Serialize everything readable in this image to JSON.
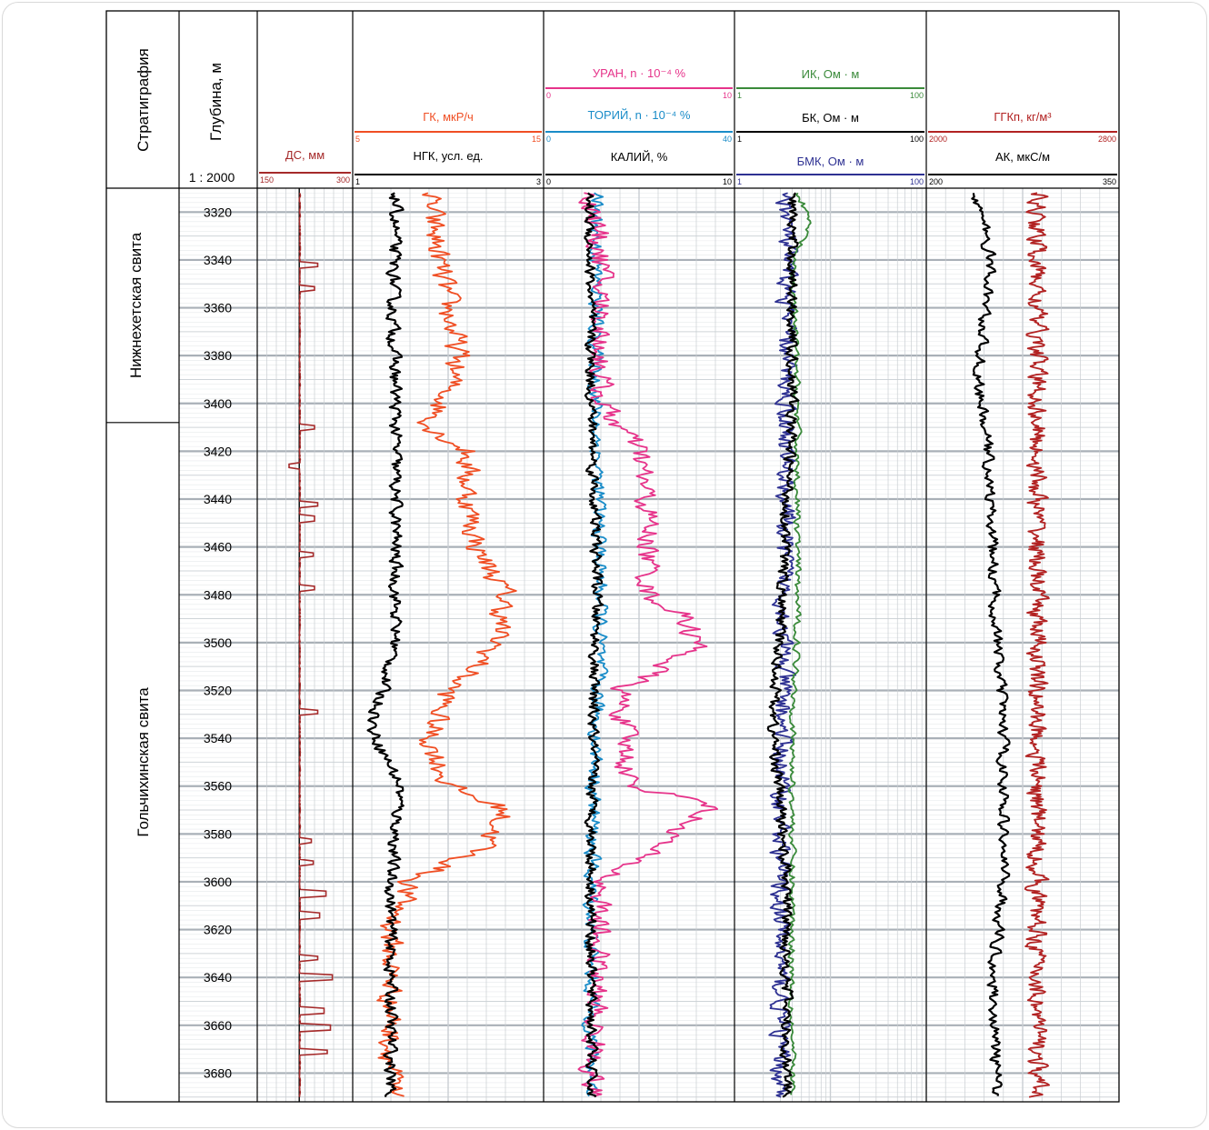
{
  "strat_header": "Стратиграфия",
  "depth_header": "Глубина, м",
  "scale": "1 : 2000",
  "formations": [
    "Нижнехетская свита",
    "Гольчихинская свита"
  ],
  "depth_ticks": [
    "3320",
    "3340",
    "3360",
    "3380",
    "3400",
    "3420",
    "3440",
    "3460",
    "3480",
    "3500",
    "3520",
    "3540",
    "3560",
    "3580",
    "3600",
    "3620",
    "3640",
    "3660",
    "3680"
  ],
  "track_headers": {
    "ds": {
      "label": "ДС, мм",
      "min": "150",
      "max": "300"
    },
    "gk": {
      "label": "ГК, мкР/ч",
      "min": "5",
      "max": "15"
    },
    "ngk": {
      "label": "НГК, усл. ед.",
      "min": "1",
      "max": "3"
    },
    "u": {
      "label": "УРАН, n · 10⁻⁴ %",
      "min": "0",
      "max": "10"
    },
    "th": {
      "label": "ТОРИЙ, n · 10⁻⁴ %",
      "min": "0",
      "max": "40"
    },
    "k": {
      "label": "КАЛИЙ, %",
      "min": "0",
      "max": "10"
    },
    "ik": {
      "label": "ИК, Ом · м",
      "min": "1",
      "max": "100"
    },
    "bk": {
      "label": "БК, Ом · м",
      "min": "1",
      "max": "100"
    },
    "bmk": {
      "label": "БМК, Ом · м",
      "min": "1",
      "max": "100"
    },
    "ggk": {
      "label": "ГГКп, кг/м³",
      "min": "2000",
      "max": "2800"
    },
    "ak": {
      "label": "АК, мкС/м",
      "min": "200",
      "max": "350"
    }
  },
  "colors": {
    "ds": "#a52a2a",
    "gk": "#f04e23",
    "ngk": "#000000",
    "u": "#e6338a",
    "th": "#1a8cc8",
    "k": "#000000",
    "ik": "#3a8a3a",
    "bk": "#000000",
    "bmk": "#2e3192",
    "ggk": "#b22222",
    "ak": "#000000",
    "grid": "#b8bec4"
  },
  "chart_data": {
    "type": "line",
    "title": "",
    "ylabel": "Глубина, м",
    "depth_range": [
      3310,
      3692
    ],
    "formation_boundary_depth": 3408,
    "series": [
      {
        "name": "ДС, мм",
        "unit_range": [
          150,
          300
        ],
        "base": 217,
        "spikes": [
          [
            3342,
            245
          ],
          [
            3352,
            240
          ],
          [
            3410,
            240
          ],
          [
            3426,
            200
          ],
          [
            3442,
            245
          ],
          [
            3448,
            240
          ],
          [
            3463,
            238
          ],
          [
            3477,
            240
          ],
          [
            3529,
            245
          ],
          [
            3583,
            235
          ],
          [
            3592,
            238
          ],
          [
            3605,
            258
          ],
          [
            3614,
            248
          ],
          [
            3632,
            245
          ],
          [
            3640,
            268
          ],
          [
            3654,
            255
          ],
          [
            3661,
            265
          ],
          [
            3671,
            260
          ]
        ]
      },
      {
        "name": "ГК, мкР/ч",
        "unit_range": [
          5,
          15
        ],
        "profile": [
          [
            3315,
            9
          ],
          [
            3340,
            9.5
          ],
          [
            3360,
            10
          ],
          [
            3380,
            10.5
          ],
          [
            3395,
            10
          ],
          [
            3410,
            9
          ],
          [
            3420,
            11
          ],
          [
            3440,
            11
          ],
          [
            3460,
            11.5
          ],
          [
            3480,
            13
          ],
          [
            3500,
            12.5
          ],
          [
            3510,
            11.5
          ],
          [
            3520,
            10
          ],
          [
            3540,
            9
          ],
          [
            3560,
            10
          ],
          [
            3570,
            13
          ],
          [
            3585,
            12
          ],
          [
            3600,
            8
          ],
          [
            3620,
            7
          ],
          [
            3640,
            7
          ],
          [
            3660,
            7
          ],
          [
            3690,
            7
          ]
        ]
      },
      {
        "name": "НГК, усл. ед.",
        "unit_range": [
          1,
          3
        ],
        "profile": [
          [
            3315,
            1.45
          ],
          [
            3360,
            1.42
          ],
          [
            3400,
            1.45
          ],
          [
            3500,
            1.45
          ],
          [
            3536,
            1.2
          ],
          [
            3560,
            1.5
          ],
          [
            3600,
            1.4
          ],
          [
            3690,
            1.4
          ]
        ]
      },
      {
        "name": "КАЛИЙ, %",
        "unit_range": [
          0,
          10
        ],
        "profile": [
          [
            3315,
            2.4
          ],
          [
            3400,
            2.5
          ],
          [
            3480,
            2.8
          ],
          [
            3520,
            2.6
          ],
          [
            3600,
            2.5
          ],
          [
            3690,
            2.5
          ]
        ]
      },
      {
        "name": "ТОРИЙ, n · 10⁻⁴ %",
        "unit_range": [
          0,
          40
        ],
        "profile": [
          [
            3315,
            11
          ],
          [
            3400,
            11
          ],
          [
            3480,
            12
          ],
          [
            3600,
            10
          ],
          [
            3690,
            10
          ]
        ]
      },
      {
        "name": "УРАН, n · 10⁻⁴ %",
        "unit_range": [
          0,
          10
        ],
        "profile": [
          [
            3315,
            2.5
          ],
          [
            3340,
            3
          ],
          [
            3400,
            3
          ],
          [
            3420,
            5
          ],
          [
            3450,
            5.5
          ],
          [
            3480,
            5.5
          ],
          [
            3490,
            7.5
          ],
          [
            3502,
            8
          ],
          [
            3520,
            4
          ],
          [
            3560,
            4.5
          ],
          [
            3567,
            9
          ],
          [
            3582,
            6.5
          ],
          [
            3600,
            3
          ],
          [
            3690,
            2.5
          ]
        ]
      },
      {
        "name": "ИК, Ом · м",
        "unit_range": [
          1,
          100
        ],
        "log": true,
        "profile": [
          [
            3315,
            5
          ],
          [
            3325,
            6
          ],
          [
            3340,
            4
          ],
          [
            3400,
            4.5
          ],
          [
            3500,
            4.5
          ],
          [
            3540,
            4
          ],
          [
            3600,
            4
          ],
          [
            3690,
            4
          ]
        ]
      },
      {
        "name": "БК, Ом · м",
        "unit_range": [
          1,
          100
        ],
        "log": true,
        "profile": [
          [
            3315,
            4
          ],
          [
            3400,
            4
          ],
          [
            3536,
            2.5
          ],
          [
            3600,
            3.5
          ],
          [
            3690,
            3.5
          ]
        ]
      },
      {
        "name": "БМК, Ом · м",
        "unit_range": [
          1,
          100
        ],
        "log": true,
        "profile": [
          [
            3315,
            3.5
          ],
          [
            3400,
            3.5
          ],
          [
            3600,
            3
          ],
          [
            3690,
            3
          ]
        ]
      },
      {
        "name": "ГГКп, кг/м³",
        "unit_range": [
          2000,
          2800
        ],
        "profile": [
          [
            3315,
            2460
          ],
          [
            3690,
            2460
          ]
        ]
      },
      {
        "name": "АК, мкС/м",
        "unit_range": [
          200,
          350
        ],
        "profile": [
          [
            3315,
            240
          ],
          [
            3340,
            250
          ],
          [
            3390,
            240
          ],
          [
            3420,
            248
          ],
          [
            3500,
            255
          ],
          [
            3536,
            260
          ],
          [
            3600,
            260
          ],
          [
            3640,
            252
          ],
          [
            3690,
            255
          ]
        ]
      }
    ]
  }
}
